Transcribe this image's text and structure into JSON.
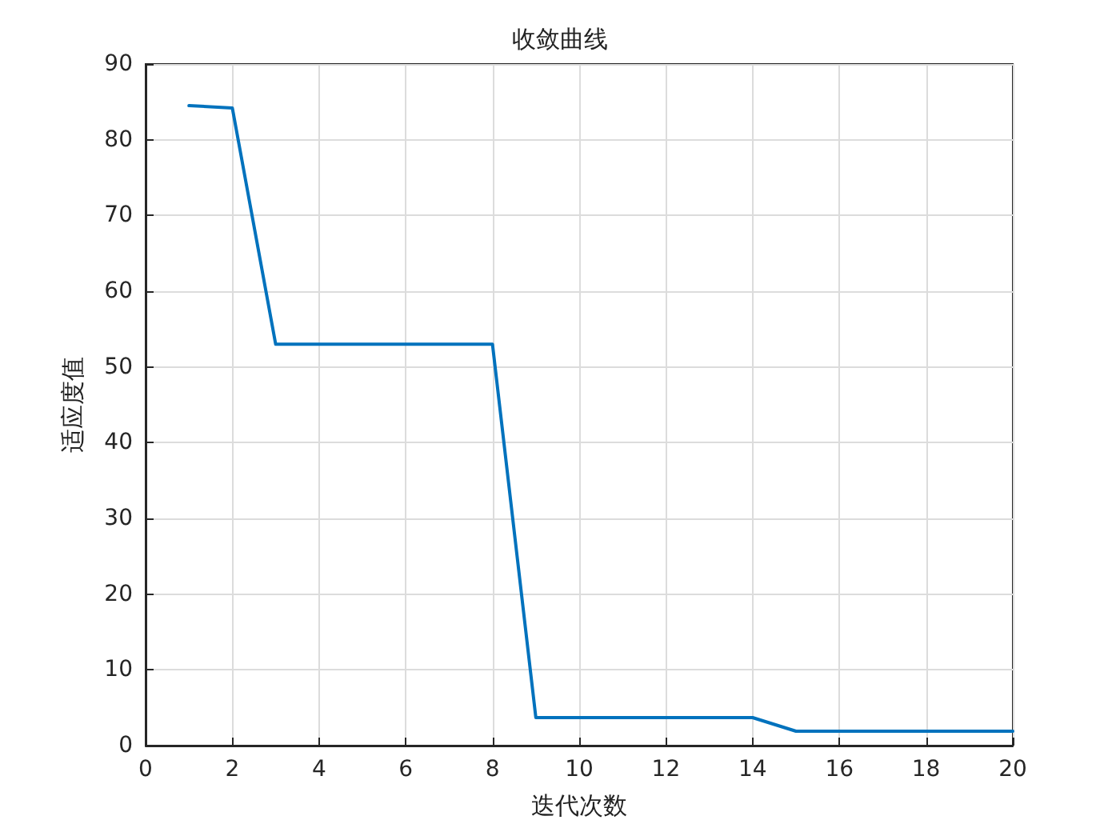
{
  "chart_data": {
    "type": "line",
    "title": "收敛曲线",
    "xlabel": "迭代次数",
    "ylabel": "适应度值",
    "x": [
      1,
      2,
      3,
      4,
      5,
      6,
      7,
      8,
      9,
      10,
      11,
      12,
      13,
      14,
      15,
      16,
      17,
      18,
      19,
      20
    ],
    "series": [
      {
        "color": "#0072bd",
        "values": [
          84.5,
          84.2,
          53,
          53,
          53,
          53,
          53,
          53,
          3.7,
          3.7,
          3.7,
          3.7,
          3.7,
          3.7,
          1.9,
          1.9,
          1.9,
          1.9,
          1.9,
          1.9
        ]
      }
    ],
    "xlim": [
      0,
      20
    ],
    "xticks": [
      0,
      2,
      4,
      6,
      8,
      10,
      12,
      14,
      16,
      18,
      20
    ],
    "ylim": [
      0,
      90
    ],
    "yticks": [
      0,
      10,
      20,
      30,
      40,
      50,
      60,
      70,
      80,
      90
    ],
    "grid": true,
    "marker": "none",
    "line_style": "solid"
  }
}
